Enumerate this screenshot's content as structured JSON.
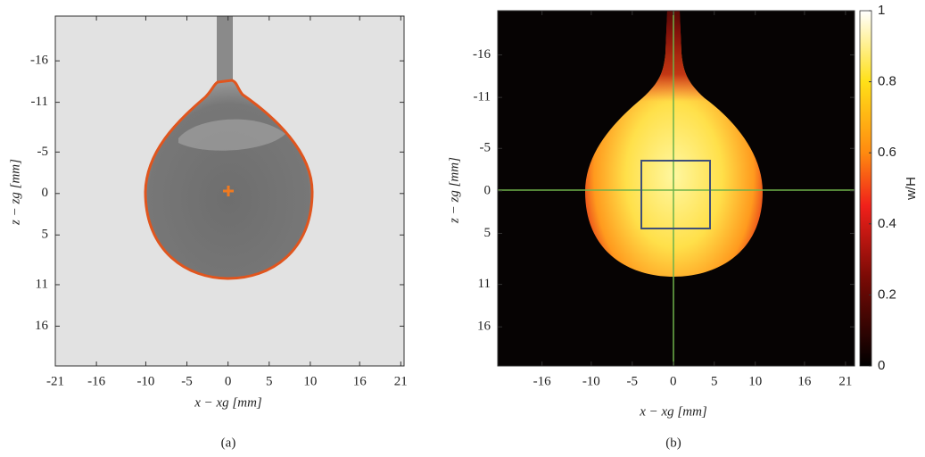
{
  "chart_data": [
    {
      "type": "image",
      "caption": "(a)",
      "x_label": "x − xg [mm]",
      "y_label": "z − zg [mm]",
      "xlim": [
        -21,
        21.4
      ],
      "xticks": [
        -21,
        -16,
        -10,
        -5,
        0,
        5,
        10,
        16,
        21
      ],
      "ylim": [
        -21.4,
        20.8
      ],
      "yticks": [
        -16,
        -11,
        -5,
        0,
        5,
        11,
        16
      ],
      "y_reversed": true
    },
    {
      "type": "image",
      "caption": "(b)",
      "x_label": "x − xg [mm]",
      "y_label": "z − zg [mm]",
      "xlim": [
        -21.4,
        22.1
      ],
      "xticks": [
        -16,
        -10,
        -5,
        0,
        5,
        10,
        16,
        21
      ],
      "ylim": [
        -21.2,
        20.6
      ],
      "yticks": [
        -16,
        -11,
        -5,
        0,
        5,
        11,
        16
      ],
      "y_reversed": true,
      "colorbar": {
        "label": "w/H",
        "lim": [
          0,
          1
        ],
        "ticks": [
          0,
          0.2,
          0.4,
          0.6,
          0.8,
          1
        ]
      }
    }
  ]
}
